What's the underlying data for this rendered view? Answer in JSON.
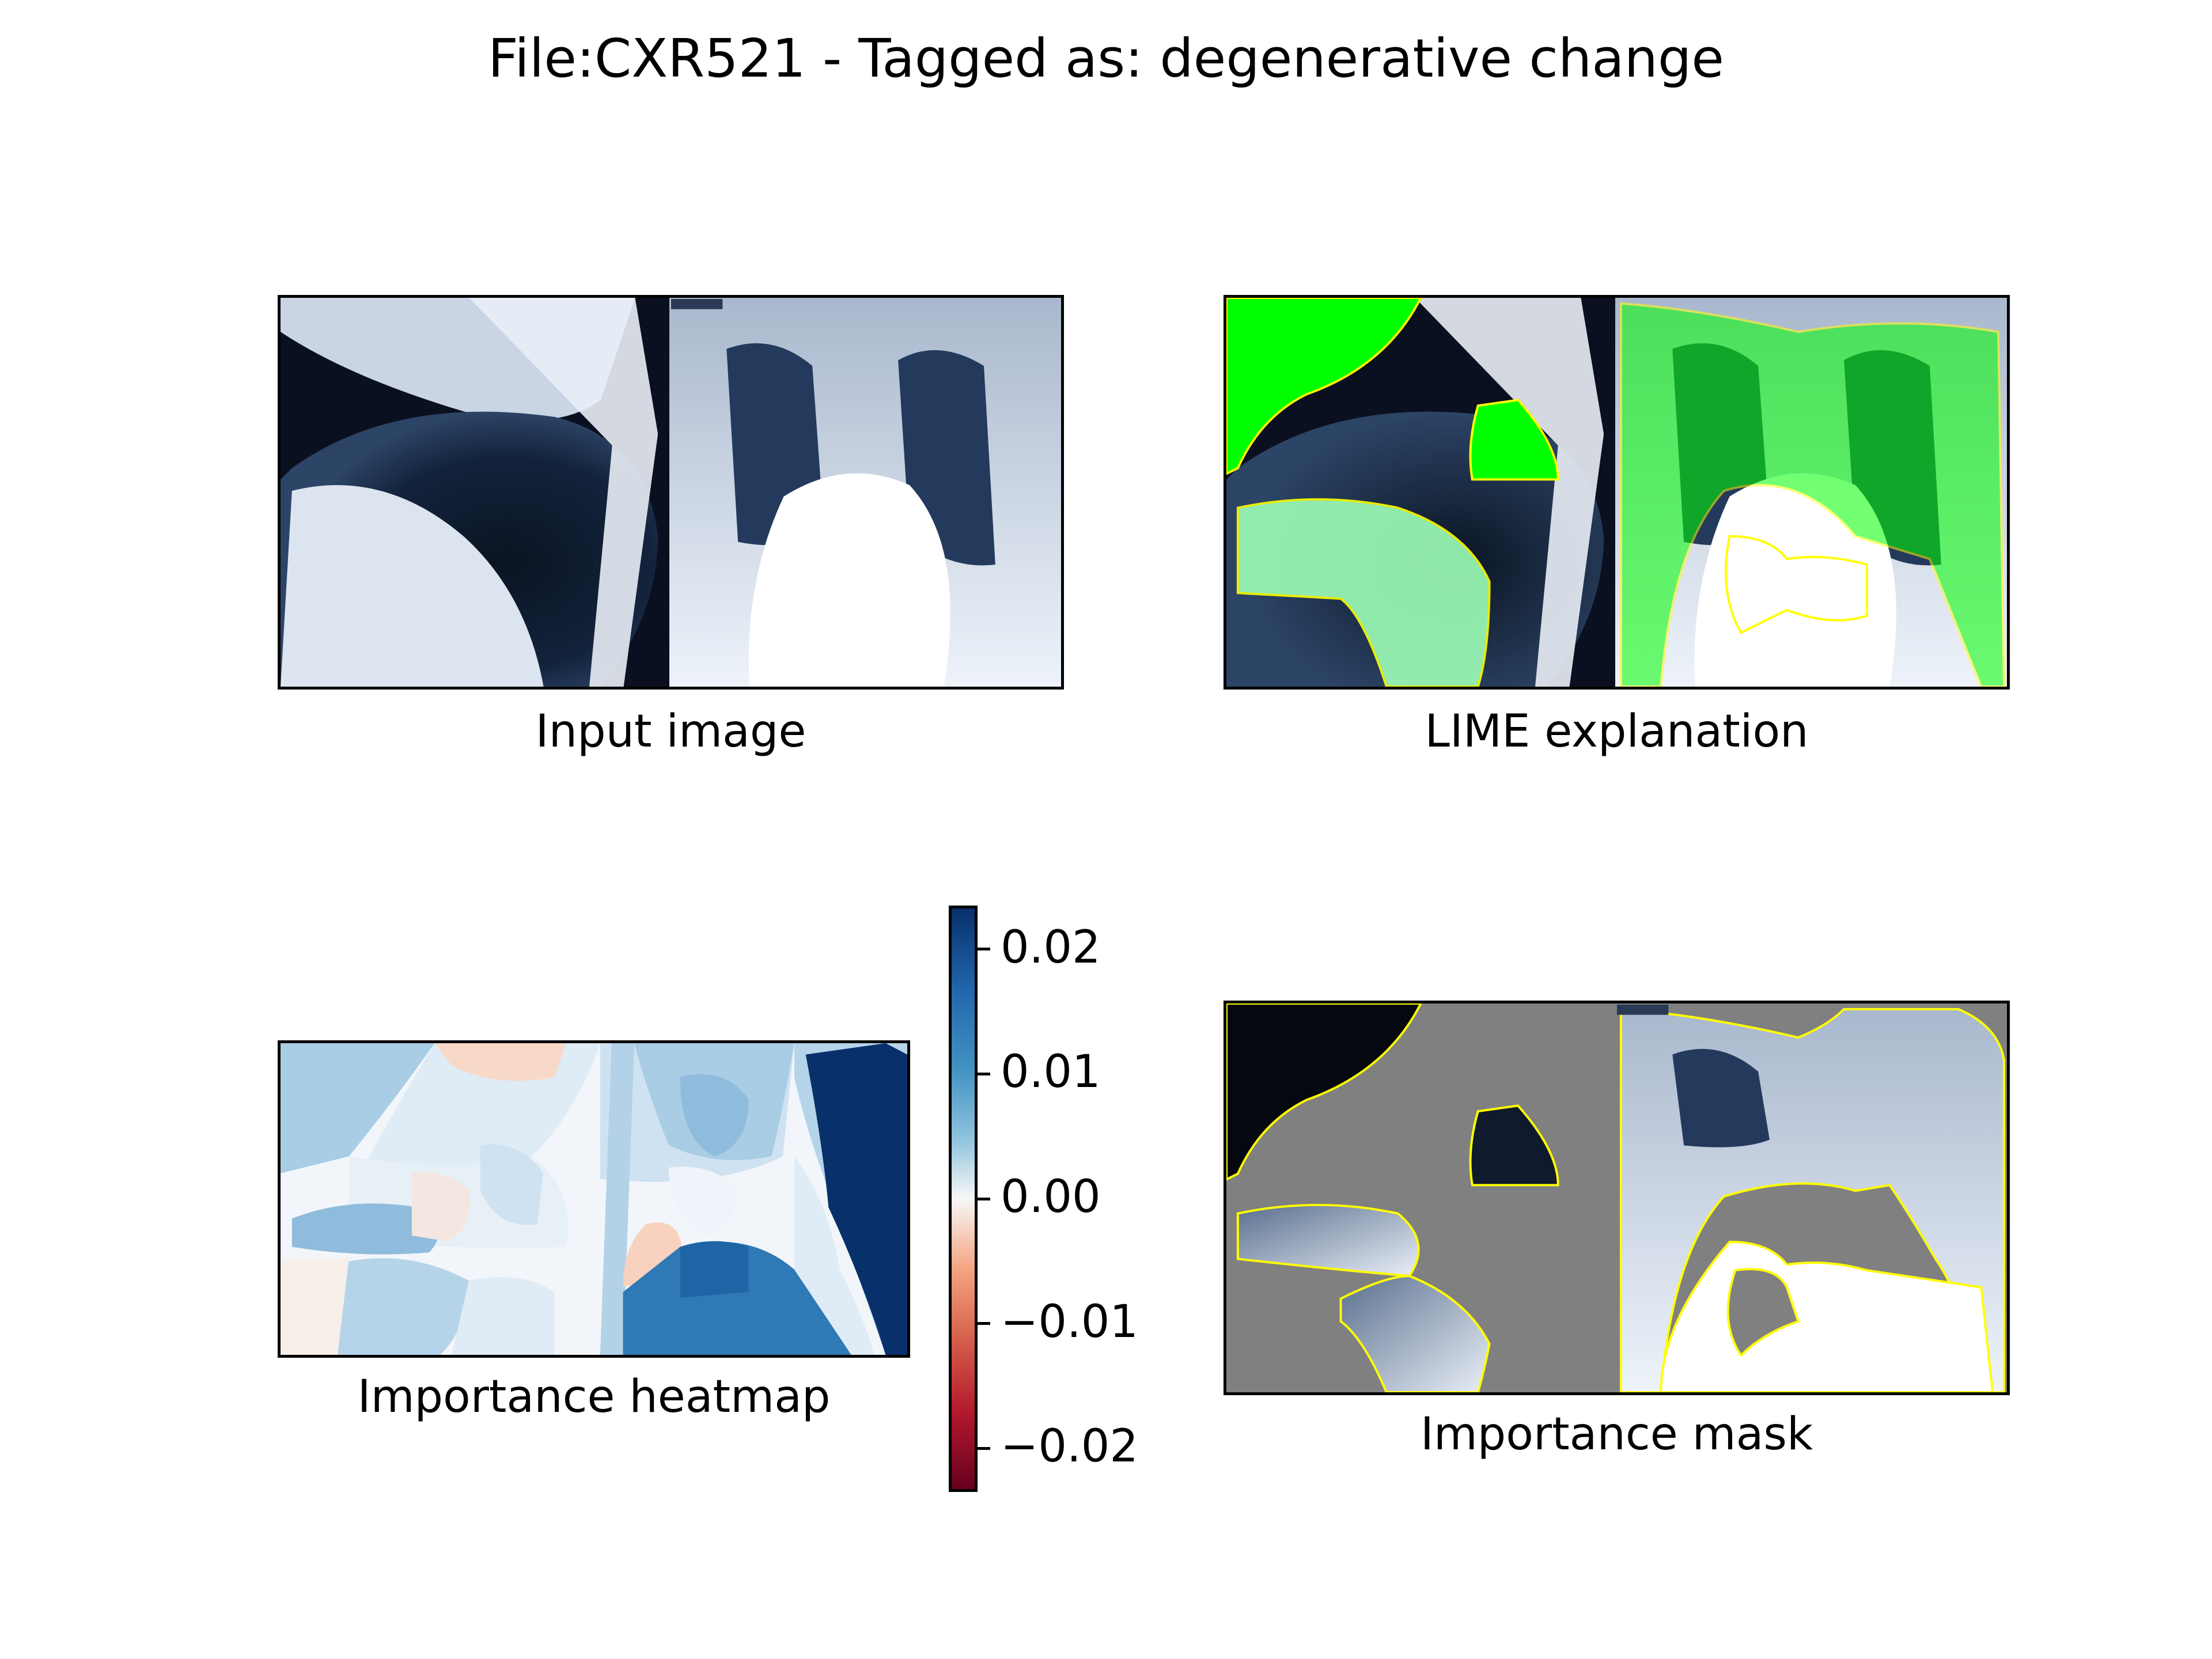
{
  "title": "File:CXR521 - Tagged as: degenerative change",
  "panels": [
    {
      "id": "input",
      "label": "Input image"
    },
    {
      "id": "lime",
      "label": "LIME explanation"
    },
    {
      "id": "heatmap",
      "label": "Importance heatmap"
    },
    {
      "id": "mask",
      "label": "Importance mask"
    }
  ],
  "chart_data": {
    "type": "heatmap",
    "colorbar": {
      "colormap": "RdBu",
      "range": [
        -0.0235,
        0.0235
      ],
      "ticks": [
        0.02,
        0.01,
        0.0,
        -0.01,
        -0.02
      ],
      "tick_labels": [
        "0.02",
        "0.01",
        "0.00",
        "−0.01",
        "−0.02"
      ]
    }
  },
  "colors": {
    "lime_highlight": "#00ff00",
    "boundary": "#ffff00",
    "mask_gray": "#808080",
    "cmap_max": "#08306b",
    "cmap_mid": "#f7f7f7",
    "cmap_min": "#67001f"
  }
}
